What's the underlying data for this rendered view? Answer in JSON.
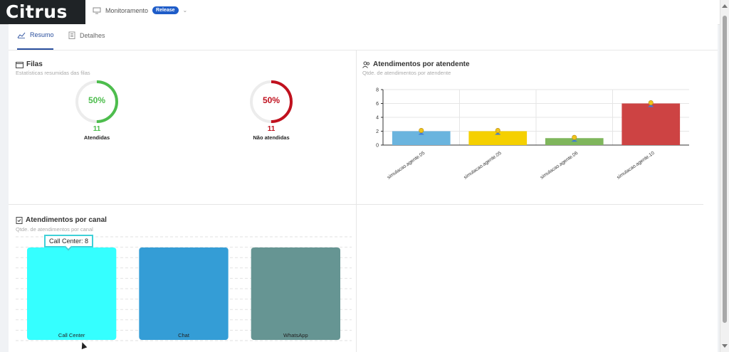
{
  "app": {
    "logo_text": "Citrus"
  },
  "breadcrumb": {
    "label": "Monitoramento",
    "badge": "Release",
    "icon": "monitor-icon"
  },
  "tabs": [
    {
      "label": "Resumo",
      "icon": "line-chart-icon",
      "active": true
    },
    {
      "label": "Detalhes",
      "icon": "building-icon",
      "active": false
    }
  ],
  "filas": {
    "title": "Filas",
    "subtitle": "Estatísticas resumidas das filas",
    "gauges": [
      {
        "percent_text": "50%",
        "percent": 50,
        "count": "11",
        "label": "Atendidas",
        "color": "#4dbd4d"
      },
      {
        "percent_text": "50%",
        "percent": 50,
        "count": "11",
        "label": "Não atendidas",
        "color": "#c0111e"
      }
    ]
  },
  "atendente": {
    "title": "Atendimentos por atendente",
    "subtitle": "Qtde. de atendimentos por atendente"
  },
  "canal": {
    "title": "Atendimentos por canal",
    "subtitle": "Qtde. de atendimentos por canal",
    "tooltip": "Call Center: 8"
  },
  "chart_data": [
    {
      "type": "bar",
      "categories": [
        "simulacao.agente.05",
        "simulacao.agente.05",
        "simulacao.agente.06",
        "simulacao.agente.10"
      ],
      "values": [
        2,
        2,
        1,
        6
      ],
      "colors": [
        "#6ab4de",
        "#f5d000",
        "#7fb65c",
        "#cd4343"
      ],
      "ylim": [
        0,
        8
      ],
      "yticks": [
        "0",
        "2",
        "4",
        "6",
        "8"
      ],
      "grid": true
    },
    {
      "type": "bar",
      "categories": [
        "Call Center",
        "Chat",
        "WhatsApp"
      ],
      "values": [
        8,
        8,
        8
      ],
      "colors": [
        "#35ffff",
        "#349dd6",
        "#669593"
      ],
      "ylim": [
        0,
        8
      ],
      "grid": true
    }
  ]
}
